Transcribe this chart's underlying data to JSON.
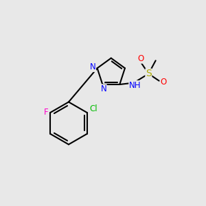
{
  "bg_color": "#e8e8e8",
  "atom_colors": {
    "C": "#000000",
    "N": "#0000ff",
    "O": "#ff0000",
    "S": "#aaaa00",
    "F": "#ff00cc",
    "Cl": "#00bb00",
    "H": "#808080"
  },
  "bond_color": "#000000",
  "bond_lw": 1.5,
  "font_size": 8.5
}
